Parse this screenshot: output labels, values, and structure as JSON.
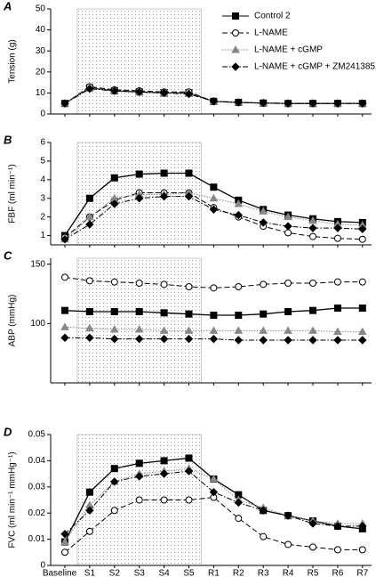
{
  "chart_data": [
    {
      "type": "line",
      "panel": "A",
      "y_label": "Tension (g)",
      "ylim": [
        0,
        50
      ],
      "yticks": [
        0,
        10,
        20,
        30,
        40,
        50
      ],
      "series": [
        {
          "name": "Control 2",
          "color": "#000",
          "marker": "square",
          "dash": "",
          "values": [
            5,
            12.5,
            11,
            10.5,
            10,
            10,
            6,
            5.5,
            5.2,
            5,
            5,
            5,
            5
          ]
        },
        {
          "name": "L-NAME",
          "color": "#000",
          "marker": "circle",
          "dash": "6,3",
          "values": [
            5,
            13,
            11.5,
            11,
            10.5,
            10.5,
            6,
            5.5,
            5.2,
            5,
            5,
            5,
            5
          ]
        },
        {
          "name": "L-NAME + cGMP",
          "color": "#888",
          "marker": "triangle",
          "dash": "1.5,1.5",
          "values": [
            5,
            12.5,
            11,
            10.5,
            10,
            10,
            6,
            5.5,
            5.2,
            5,
            5,
            5,
            5
          ]
        },
        {
          "name": "L-NAME + cGMP + ZM241385",
          "color": "#000",
          "marker": "diamond",
          "dash": "6,2,1.5,2",
          "values": [
            5,
            12,
            11,
            10.5,
            10,
            9.5,
            6,
            5.5,
            5.2,
            5,
            5,
            5,
            5
          ]
        }
      ]
    },
    {
      "type": "line",
      "panel": "B",
      "y_label": "FBF (ml min⁻¹)",
      "ylim": [
        0.5,
        6
      ],
      "yticks": [
        1,
        2,
        3,
        4,
        5,
        6
      ],
      "series": [
        {
          "values": [
            1.0,
            3.0,
            4.1,
            4.3,
            4.35,
            4.35,
            3.6,
            2.9,
            2.4,
            2.1,
            1.9,
            1.75,
            1.7
          ]
        },
        {
          "values": [
            0.9,
            2.0,
            2.9,
            3.3,
            3.3,
            3.3,
            2.5,
            2.0,
            1.5,
            1.15,
            0.95,
            0.85,
            0.8
          ]
        },
        {
          "values": [
            0.8,
            2.0,
            3.0,
            3.2,
            3.2,
            3.3,
            3.0,
            2.7,
            2.3,
            2.0,
            1.8,
            1.6,
            1.55
          ]
        },
        {
          "values": [
            0.8,
            1.6,
            2.7,
            3.0,
            3.1,
            3.1,
            2.4,
            2.1,
            1.7,
            1.5,
            1.4,
            1.4,
            1.35
          ]
        }
      ]
    },
    {
      "type": "line",
      "panel": "C",
      "y_label": "ABP (mmHg)",
      "ylim": [
        50,
        155
      ],
      "yticks": [
        100,
        150
      ],
      "series": [
        {
          "values": [
            111,
            110,
            110,
            110,
            109,
            108,
            107,
            107,
            108,
            110,
            111,
            113,
            113
          ]
        },
        {
          "values": [
            139,
            136,
            135,
            134,
            133,
            131,
            130,
            131,
            133,
            134,
            134,
            135,
            135
          ]
        },
        {
          "values": [
            97,
            96,
            95,
            95,
            94,
            94,
            94,
            94,
            94,
            94,
            94,
            93,
            93
          ]
        },
        {
          "values": [
            88,
            88,
            87,
            87,
            87,
            87,
            87,
            86,
            86,
            86,
            86,
            86,
            86
          ]
        }
      ]
    },
    {
      "type": "line",
      "panel": "D",
      "y_label": "FVC (ml min⁻¹ mmHg⁻¹)",
      "ylim": [
        0,
        0.05
      ],
      "yticks": [
        0,
        0.01,
        0.02,
        0.03,
        0.04,
        0.05
      ],
      "categories": [
        "Baseline",
        "S1",
        "S2",
        "S3",
        "S4",
        "S5",
        "R1",
        "R2",
        "R3",
        "R4",
        "R5",
        "R6",
        "R7"
      ],
      "series": [
        {
          "values": [
            0.009,
            0.028,
            0.037,
            0.039,
            0.04,
            0.041,
            0.033,
            0.027,
            0.021,
            0.019,
            0.017,
            0.015,
            0.014
          ]
        },
        {
          "values": [
            0.005,
            0.013,
            0.021,
            0.025,
            0.025,
            0.025,
            0.026,
            0.018,
            0.011,
            0.008,
            0.007,
            0.006,
            0.006
          ]
        },
        {
          "values": [
            0.009,
            0.023,
            0.032,
            0.035,
            0.036,
            0.037,
            0.033,
            0.025,
            0.022,
            0.019,
            0.017,
            0.016,
            0.016
          ]
        },
        {
          "values": [
            0.012,
            0.021,
            0.032,
            0.034,
            0.035,
            0.036,
            0.028,
            0.024,
            0.021,
            0.019,
            0.016,
            0.015,
            0.015
          ]
        }
      ]
    }
  ]
}
